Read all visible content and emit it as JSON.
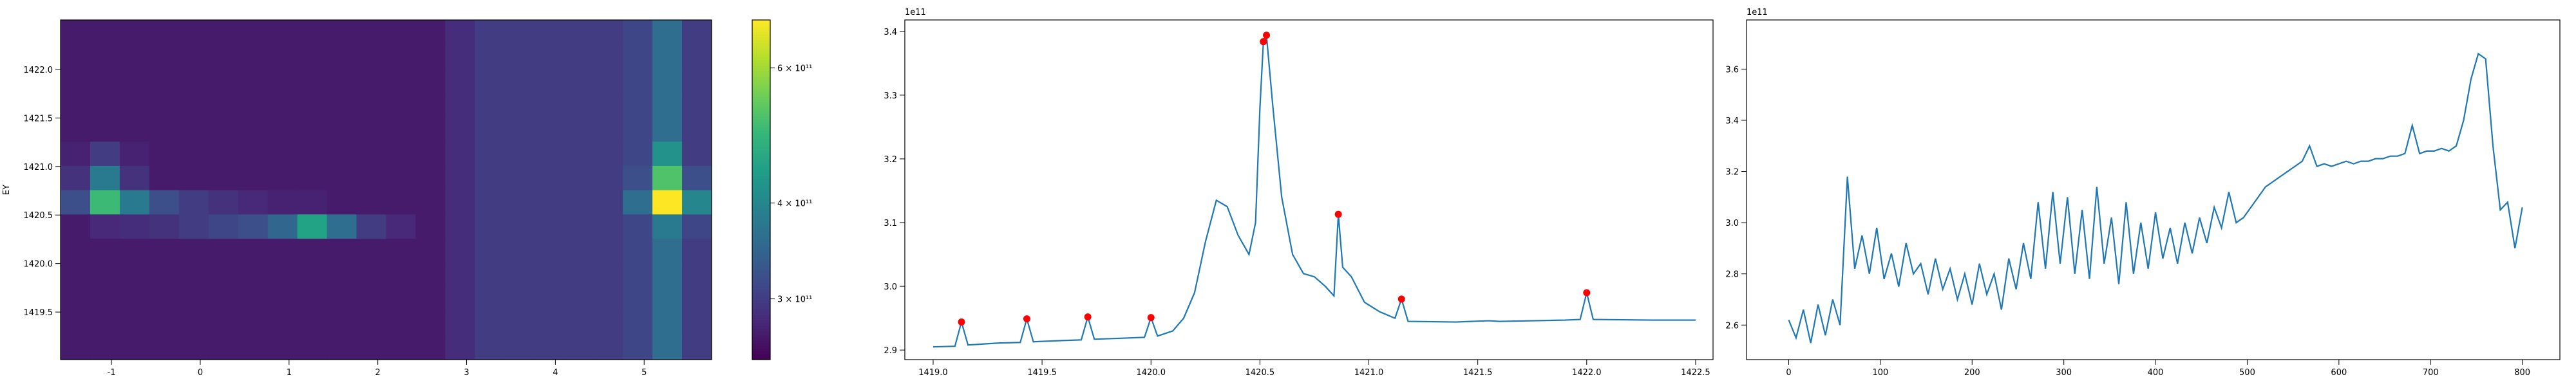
{
  "chart_data": [
    {
      "type": "heatmap",
      "ylabel": "EY",
      "xlim": [
        -1.574,
        5.76
      ],
      "ylim": [
        1419.01,
        1422.51
      ],
      "xticks": [
        -1,
        0,
        1,
        2,
        3,
        4,
        5
      ],
      "yticks": [
        1419.5,
        {
          "value": 1420,
          "label": "1420.0"
        },
        1420.5,
        {
          "value": 1421,
          "label": "1421.0"
        },
        1421.5,
        {
          "value": 1422,
          "label": "1422.0"
        }
      ],
      "colormap": "viridis",
      "color_scale": "log",
      "clim": [
        250000000000.0,
        693000000000.0
      ],
      "cticks": [
        {
          "value": 300000000000.0,
          "label": "3 × 10¹¹"
        },
        {
          "value": 400000000000.0,
          "label": "4 × 10¹¹"
        },
        {
          "value": 600000000000.0,
          "label": "6 × 10¹¹"
        }
      ],
      "z": [
        [
          270000000000.0,
          270000000000.0,
          270000000000.0,
          270000000000.0,
          270000000000.0,
          270000000000.0,
          270000000000.0,
          270000000000.0,
          270000000000.0,
          270000000000.0,
          270000000000.0,
          270000000000.0,
          270000000000.0,
          285000000000.0,
          300000000000.0,
          300000000000.0,
          300000000000.0,
          300000000000.0,
          300000000000.0,
          310000000000.0,
          360000000000.0,
          300000000000.0
        ],
        [
          270000000000.0,
          270000000000.0,
          270000000000.0,
          270000000000.0,
          270000000000.0,
          270000000000.0,
          270000000000.0,
          270000000000.0,
          270000000000.0,
          270000000000.0,
          270000000000.0,
          270000000000.0,
          270000000000.0,
          285000000000.0,
          300000000000.0,
          300000000000.0,
          300000000000.0,
          300000000000.0,
          300000000000.0,
          310000000000.0,
          360000000000.0,
          300000000000.0
        ],
        [
          270000000000.0,
          270000000000.0,
          270000000000.0,
          270000000000.0,
          270000000000.0,
          270000000000.0,
          270000000000.0,
          270000000000.0,
          270000000000.0,
          270000000000.0,
          270000000000.0,
          270000000000.0,
          270000000000.0,
          285000000000.0,
          300000000000.0,
          300000000000.0,
          300000000000.0,
          300000000000.0,
          300000000000.0,
          310000000000.0,
          360000000000.0,
          300000000000.0
        ],
        [
          270000000000.0,
          270000000000.0,
          270000000000.0,
          270000000000.0,
          270000000000.0,
          270000000000.0,
          270000000000.0,
          270000000000.0,
          270000000000.0,
          270000000000.0,
          270000000000.0,
          270000000000.0,
          270000000000.0,
          285000000000.0,
          300000000000.0,
          300000000000.0,
          300000000000.0,
          300000000000.0,
          300000000000.0,
          310000000000.0,
          360000000000.0,
          300000000000.0
        ],
        [
          270000000000.0,
          270000000000.0,
          270000000000.0,
          270000000000.0,
          270000000000.0,
          270000000000.0,
          270000000000.0,
          270000000000.0,
          270000000000.0,
          270000000000.0,
          270000000000.0,
          270000000000.0,
          270000000000.0,
          285000000000.0,
          300000000000.0,
          300000000000.0,
          300000000000.0,
          300000000000.0,
          300000000000.0,
          310000000000.0,
          360000000000.0,
          300000000000.0
        ],
        [
          270000000000.0,
          280000000000.0,
          285000000000.0,
          290000000000.0,
          300000000000.0,
          310000000000.0,
          320000000000.0,
          350000000000.0,
          450000000000.0,
          360000000000.0,
          300000000000.0,
          280000000000.0,
          270000000000.0,
          285000000000.0,
          300000000000.0,
          300000000000.0,
          300000000000.0,
          300000000000.0,
          300000000000.0,
          310000000000.0,
          380000000000.0,
          310000000000.0
        ],
        [
          320000000000.0,
          500000000000.0,
          380000000000.0,
          320000000000.0,
          300000000000.0,
          290000000000.0,
          280000000000.0,
          275000000000.0,
          275000000000.0,
          270000000000.0,
          270000000000.0,
          270000000000.0,
          270000000000.0,
          285000000000.0,
          300000000000.0,
          300000000000.0,
          300000000000.0,
          300000000000.0,
          300000000000.0,
          360000000000.0,
          700000000000.0,
          400000000000.0
        ],
        [
          290000000000.0,
          380000000000.0,
          290000000000.0,
          270000000000.0,
          270000000000.0,
          270000000000.0,
          270000000000.0,
          270000000000.0,
          270000000000.0,
          270000000000.0,
          270000000000.0,
          270000000000.0,
          270000000000.0,
          285000000000.0,
          300000000000.0,
          300000000000.0,
          300000000000.0,
          300000000000.0,
          300000000000.0,
          320000000000.0,
          520000000000.0,
          320000000000.0
        ],
        [
          275000000000.0,
          300000000000.0,
          275000000000.0,
          270000000000.0,
          270000000000.0,
          270000000000.0,
          270000000000.0,
          270000000000.0,
          270000000000.0,
          270000000000.0,
          270000000000.0,
          270000000000.0,
          270000000000.0,
          285000000000.0,
          300000000000.0,
          300000000000.0,
          300000000000.0,
          300000000000.0,
          300000000000.0,
          310000000000.0,
          420000000000.0,
          300000000000.0
        ],
        [
          270000000000.0,
          270000000000.0,
          270000000000.0,
          270000000000.0,
          270000000000.0,
          270000000000.0,
          270000000000.0,
          270000000000.0,
          270000000000.0,
          270000000000.0,
          270000000000.0,
          270000000000.0,
          270000000000.0,
          285000000000.0,
          300000000000.0,
          300000000000.0,
          300000000000.0,
          300000000000.0,
          300000000000.0,
          310000000000.0,
          360000000000.0,
          300000000000.0
        ],
        [
          270000000000.0,
          270000000000.0,
          270000000000.0,
          270000000000.0,
          270000000000.0,
          270000000000.0,
          270000000000.0,
          270000000000.0,
          270000000000.0,
          270000000000.0,
          270000000000.0,
          270000000000.0,
          270000000000.0,
          285000000000.0,
          300000000000.0,
          300000000000.0,
          300000000000.0,
          300000000000.0,
          300000000000.0,
          310000000000.0,
          360000000000.0,
          300000000000.0
        ],
        [
          270000000000.0,
          270000000000.0,
          270000000000.0,
          270000000000.0,
          270000000000.0,
          270000000000.0,
          270000000000.0,
          270000000000.0,
          270000000000.0,
          270000000000.0,
          270000000000.0,
          270000000000.0,
          270000000000.0,
          285000000000.0,
          300000000000.0,
          300000000000.0,
          300000000000.0,
          300000000000.0,
          300000000000.0,
          310000000000.0,
          360000000000.0,
          300000000000.0
        ],
        [
          270000000000.0,
          270000000000.0,
          270000000000.0,
          270000000000.0,
          270000000000.0,
          270000000000.0,
          270000000000.0,
          270000000000.0,
          270000000000.0,
          270000000000.0,
          270000000000.0,
          270000000000.0,
          270000000000.0,
          285000000000.0,
          300000000000.0,
          300000000000.0,
          300000000000.0,
          300000000000.0,
          300000000000.0,
          310000000000.0,
          360000000000.0,
          300000000000.0
        ],
        [
          270000000000.0,
          270000000000.0,
          270000000000.0,
          270000000000.0,
          270000000000.0,
          270000000000.0,
          270000000000.0,
          270000000000.0,
          270000000000.0,
          270000000000.0,
          270000000000.0,
          270000000000.0,
          270000000000.0,
          285000000000.0,
          300000000000.0,
          300000000000.0,
          300000000000.0,
          300000000000.0,
          300000000000.0,
          310000000000.0,
          360000000000.0,
          300000000000.0
        ]
      ]
    },
    {
      "type": "line",
      "offset_label": "1e11",
      "color": "#1f77b4",
      "xlim": [
        1418.87,
        1422.58
      ],
      "ylim": [
        2.885,
        3.418
      ],
      "xticks": [
        {
          "value": 1419,
          "label": "1419.0"
        },
        1419.5,
        {
          "value": 1420,
          "label": "1420.0"
        },
        1420.5,
        {
          "value": 1421,
          "label": "1421.0"
        },
        1421.5,
        {
          "value": 1422,
          "label": "1422.0"
        },
        1422.5
      ],
      "yticks": [
        2.9,
        {
          "value": 3,
          "label": "3.0"
        },
        3.1,
        3.2,
        3.3,
        3.4
      ],
      "x": [
        1419.0,
        1419.1,
        1419.13,
        1419.16,
        1419.3,
        1419.4,
        1419.43,
        1419.46,
        1419.6,
        1419.68,
        1419.71,
        1419.74,
        1419.9,
        1419.97,
        1420.0,
        1420.03,
        1420.1,
        1420.15,
        1420.2,
        1420.25,
        1420.3,
        1420.35,
        1420.4,
        1420.45,
        1420.48,
        1420.5,
        1420.516,
        1420.53,
        1420.56,
        1420.6,
        1420.65,
        1420.7,
        1420.75,
        1420.8,
        1420.84,
        1420.86,
        1420.88,
        1420.92,
        1420.98,
        1421.05,
        1421.12,
        1421.15,
        1421.18,
        1421.4,
        1421.55,
        1421.6,
        1421.9,
        1421.97,
        1422.0,
        1422.03,
        1422.3,
        1422.5
      ],
      "values": [
        2.905,
        2.906,
        2.944,
        2.908,
        2.911,
        2.912,
        2.949,
        2.913,
        2.915,
        2.916,
        2.952,
        2.917,
        2.919,
        2.92,
        2.951,
        2.922,
        2.93,
        2.95,
        2.99,
        3.07,
        3.135,
        3.125,
        3.08,
        3.05,
        3.1,
        3.28,
        3.384,
        3.394,
        3.28,
        3.14,
        3.05,
        3.02,
        3.015,
        3.0,
        2.985,
        3.113,
        3.03,
        3.015,
        2.975,
        2.96,
        2.95,
        2.98,
        2.945,
        2.944,
        2.946,
        2.945,
        2.947,
        2.948,
        2.99,
        2.948,
        2.947,
        2.947
      ],
      "markers": {
        "color": "red",
        "x": [
          1419.13,
          1419.43,
          1419.71,
          1420.0,
          1420.516,
          1420.53,
          1420.86,
          1421.15,
          1422.0
        ],
        "values": [
          2.944,
          2.949,
          2.952,
          2.951,
          3.384,
          3.394,
          3.113,
          2.98,
          2.99
        ]
      }
    },
    {
      "type": "line",
      "offset_label": "1e11",
      "color": "#1f77b4",
      "xlim": [
        -46,
        841
      ],
      "ylim": [
        2.465,
        3.792
      ],
      "xticks": [
        0,
        100,
        200,
        300,
        400,
        500,
        600,
        700,
        800
      ],
      "yticks": [
        2.6,
        2.8,
        {
          "value": 3,
          "label": "3.0"
        },
        3.2,
        3.4,
        3.6
      ],
      "x": [
        0,
        8,
        16,
        24,
        32,
        40,
        48,
        56,
        64,
        72,
        80,
        88,
        96,
        104,
        112,
        120,
        128,
        136,
        144,
        152,
        160,
        168,
        176,
        184,
        192,
        200,
        208,
        216,
        224,
        232,
        240,
        248,
        256,
        264,
        272,
        280,
        288,
        296,
        304,
        312,
        320,
        328,
        336,
        344,
        352,
        360,
        368,
        376,
        384,
        392,
        400,
        408,
        416,
        424,
        432,
        440,
        448,
        456,
        464,
        472,
        480,
        488,
        496,
        504,
        512,
        520,
        528,
        536,
        544,
        552,
        560,
        568,
        576,
        584,
        592,
        600,
        608,
        616,
        624,
        632,
        640,
        648,
        656,
        664,
        672,
        680,
        688,
        696,
        704,
        712,
        720,
        728,
        736,
        744,
        752,
        760,
        768,
        776,
        784,
        792,
        800
      ],
      "values": [
        2.62,
        2.55,
        2.66,
        2.53,
        2.68,
        2.56,
        2.7,
        2.6,
        3.18,
        2.82,
        2.95,
        2.8,
        2.98,
        2.78,
        2.88,
        2.75,
        2.92,
        2.8,
        2.84,
        2.72,
        2.86,
        2.74,
        2.82,
        2.7,
        2.8,
        2.68,
        2.84,
        2.72,
        2.8,
        2.66,
        2.86,
        2.74,
        2.92,
        2.78,
        3.08,
        2.82,
        3.12,
        2.84,
        3.1,
        2.8,
        3.05,
        2.78,
        3.14,
        2.84,
        3.02,
        2.76,
        3.08,
        2.8,
        3.0,
        2.82,
        3.04,
        2.86,
        2.98,
        2.84,
        3.0,
        2.88,
        3.02,
        2.92,
        3.06,
        2.98,
        3.12,
        3.0,
        3.02,
        3.06,
        3.1,
        3.14,
        3.16,
        3.18,
        3.2,
        3.22,
        3.24,
        3.3,
        3.22,
        3.23,
        3.22,
        3.23,
        3.24,
        3.23,
        3.24,
        3.24,
        3.25,
        3.25,
        3.26,
        3.26,
        3.27,
        3.38,
        3.27,
        3.28,
        3.28,
        3.29,
        3.28,
        3.3,
        3.4,
        3.56,
        3.66,
        3.64,
        3.3,
        3.05,
        3.08,
        2.9,
        3.06
      ]
    }
  ]
}
